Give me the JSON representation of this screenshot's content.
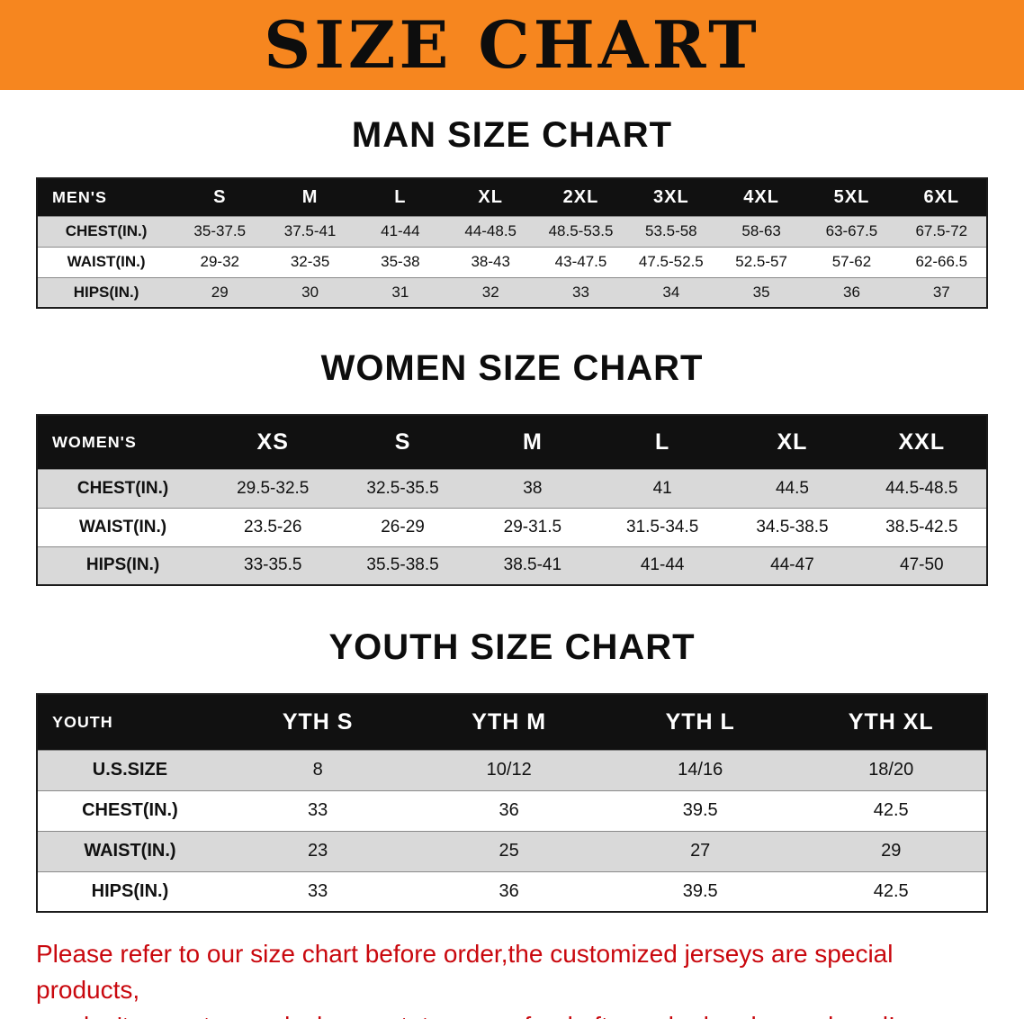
{
  "colors": {
    "banner-bg": "#f6861f",
    "table-header-bg": "#111111",
    "row-alt-bg": "#d9d9d9",
    "disclaimer-red": "#c9080e"
  },
  "banner": {
    "title": "SIZE CHART"
  },
  "sections": [
    {
      "heading": "MAN SIZE CHART",
      "table": {
        "header": [
          "MEN'S",
          "S",
          "M",
          "L",
          "XL",
          "2XL",
          "3XL",
          "4XL",
          "5XL",
          "6XL"
        ],
        "rows": [
          {
            "label": "CHEST(IN.)",
            "values": [
              "35-37.5",
              "37.5-41",
              "41-44",
              "44-48.5",
              "48.5-53.5",
              "53.5-58",
              "58-63",
              "63-67.5",
              "67.5-72"
            ]
          },
          {
            "label": "WAIST(IN.)",
            "values": [
              "29-32",
              "32-35",
              "35-38",
              "38-43",
              "43-47.5",
              "47.5-52.5",
              "52.5-57",
              "57-62",
              "62-66.5"
            ]
          },
          {
            "label": "HIPS(IN.)",
            "values": [
              "29",
              "30",
              "31",
              "32",
              "33",
              "34",
              "35",
              "36",
              "37"
            ]
          }
        ]
      }
    },
    {
      "heading": "WOMEN SIZE CHART",
      "table": {
        "header": [
          "WOMEN'S",
          "XS",
          "S",
          "M",
          "L",
          "XL",
          "XXL"
        ],
        "rows": [
          {
            "label": "CHEST(IN.)",
            "values": [
              "29.5-32.5",
              "32.5-35.5",
              "38",
              "41",
              "44.5",
              "44.5-48.5"
            ]
          },
          {
            "label": "WAIST(IN.)",
            "values": [
              "23.5-26",
              "26-29",
              "29-31.5",
              "31.5-34.5",
              "34.5-38.5",
              "38.5-42.5"
            ]
          },
          {
            "label": "HIPS(IN.)",
            "values": [
              "33-35.5",
              "35.5-38.5",
              "38.5-41",
              "41-44",
              "44-47",
              "47-50"
            ]
          }
        ]
      }
    },
    {
      "heading": "YOUTH SIZE CHART",
      "table": {
        "header": [
          "YOUTH",
          "YTH S",
          "YTH M",
          "YTH L",
          "YTH XL"
        ],
        "rows": [
          {
            "label": "U.S.SIZE",
            "values": [
              "8",
              "10/12",
              "14/16",
              "18/20"
            ]
          },
          {
            "label": "CHEST(IN.)",
            "values": [
              "33",
              "36",
              "39.5",
              "42.5"
            ]
          },
          {
            "label": "WAIST(IN.)",
            "values": [
              "23",
              "25",
              "27",
              "29"
            ]
          },
          {
            "label": "HIPS(IN.)",
            "values": [
              "33",
              "36",
              "39.5",
              "42.5"
            ]
          }
        ]
      }
    }
  ],
  "disclaimer": {
    "lines": [
      "Please refer to our size chart before order,the customized jerseys are special products,",
      "we don't accept cancel, change, teturn or refund after order has been placed!"
    ]
  }
}
